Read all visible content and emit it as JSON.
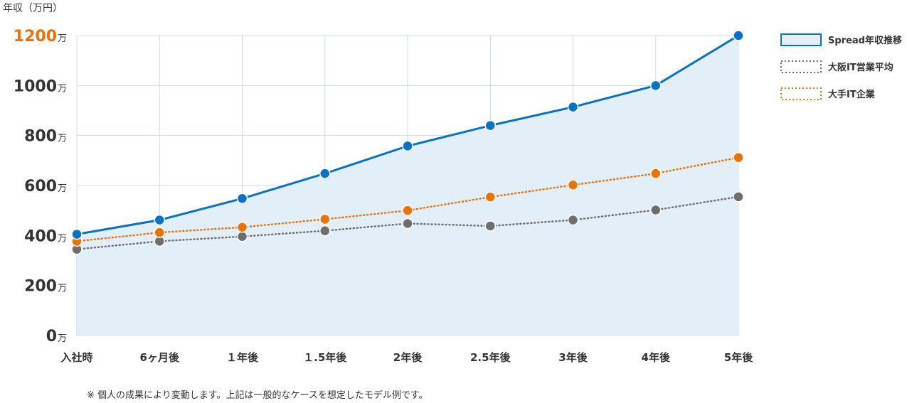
{
  "chart_data": {
    "type": "line",
    "ylabel": "年収（万円）",
    "ylim": [
      0,
      1200
    ],
    "yticks": [
      0,
      200,
      400,
      600,
      800,
      1000,
      1200
    ],
    "ytick_unit": "万",
    "ytick_highlight": 1200,
    "grid": true,
    "legend_position": "top-right",
    "categories": [
      "入社時",
      "6ヶ月後",
      "１年後",
      "１.5年後",
      "2年後",
      "2.5年後",
      "3年後",
      "4年後",
      "5年後"
    ],
    "series": [
      {
        "name": "Spread年収推移",
        "color": "#0a72c2",
        "style": "solid-area",
        "area_color": "#e2eff8",
        "values": [
          405,
          462,
          548,
          648,
          758,
          840,
          914,
          1000,
          1200
        ]
      },
      {
        "name": "大阪IT営業平均",
        "color": "#6e6e6e",
        "style": "dotted",
        "values": [
          345,
          377,
          396,
          419,
          448,
          438,
          462,
          502,
          555
        ]
      },
      {
        "name": "大手IT企業",
        "color": "#e8720c",
        "style": "dotted",
        "values": [
          377,
          412,
          433,
          465,
          500,
          554,
          602,
          648,
          712
        ]
      }
    ]
  },
  "note": "※ 個人の成果により変動します。上記は一般的なケースを想定したモデル例です。"
}
